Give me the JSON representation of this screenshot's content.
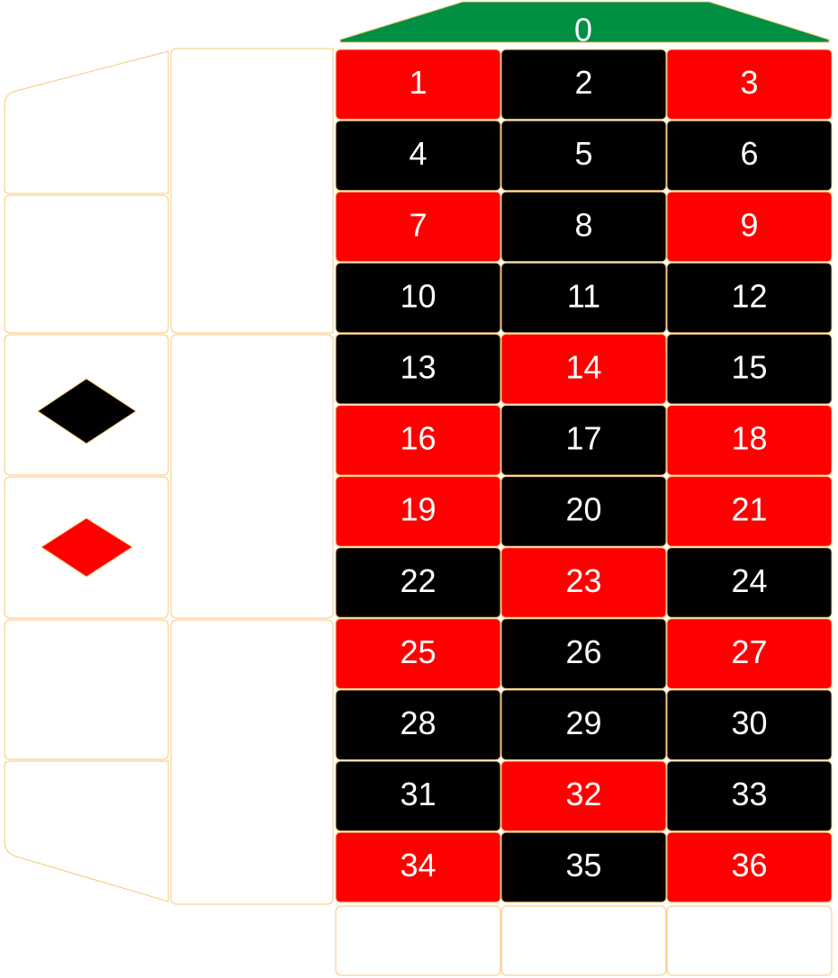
{
  "table": {
    "zero": {
      "label": "0",
      "color": "#008f43"
    },
    "numbers": [
      {
        "label": "1",
        "color": "red"
      },
      {
        "label": "2",
        "color": "black"
      },
      {
        "label": "3",
        "color": "red"
      },
      {
        "label": "4",
        "color": "black"
      },
      {
        "label": "5",
        "color": "black"
      },
      {
        "label": "6",
        "color": "black"
      },
      {
        "label": "7",
        "color": "red"
      },
      {
        "label": "8",
        "color": "black"
      },
      {
        "label": "9",
        "color": "red"
      },
      {
        "label": "10",
        "color": "black"
      },
      {
        "label": "11",
        "color": "black"
      },
      {
        "label": "12",
        "color": "black"
      },
      {
        "label": "13",
        "color": "black"
      },
      {
        "label": "14",
        "color": "red"
      },
      {
        "label": "15",
        "color": "black"
      },
      {
        "label": "16",
        "color": "red"
      },
      {
        "label": "17",
        "color": "black"
      },
      {
        "label": "18",
        "color": "red"
      },
      {
        "label": "19",
        "color": "red"
      },
      {
        "label": "20",
        "color": "black"
      },
      {
        "label": "21",
        "color": "red"
      },
      {
        "label": "22",
        "color": "black"
      },
      {
        "label": "23",
        "color": "red"
      },
      {
        "label": "24",
        "color": "black"
      },
      {
        "label": "25",
        "color": "red"
      },
      {
        "label": "26",
        "color": "black"
      },
      {
        "label": "27",
        "color": "red"
      },
      {
        "label": "28",
        "color": "black"
      },
      {
        "label": "29",
        "color": "black"
      },
      {
        "label": "30",
        "color": "black"
      },
      {
        "label": "31",
        "color": "black"
      },
      {
        "label": "32",
        "color": "red"
      },
      {
        "label": "33",
        "color": "black"
      },
      {
        "label": "34",
        "color": "red"
      },
      {
        "label": "35",
        "color": "black"
      },
      {
        "label": "36",
        "color": "red"
      }
    ],
    "outside_bets": {
      "black_diamond": "black",
      "red_diamond": "red"
    },
    "colors": {
      "red": "#ff0000",
      "black": "#000000",
      "green": "#008f43",
      "border": "#f5c87a"
    }
  }
}
